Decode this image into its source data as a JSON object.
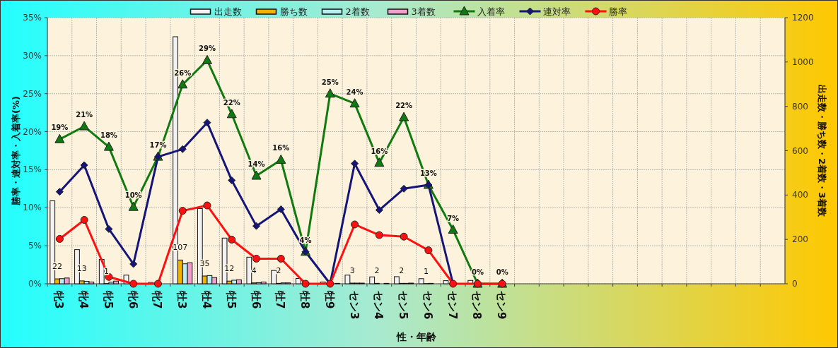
{
  "chart_data": {
    "type": "bar",
    "xlabel": "性・年齢",
    "ylabel": "勝率・連対率・入着率(%)",
    "y2label": "出走数・勝ち数・2着数・3着数",
    "categories": [
      "牝3",
      "牝4",
      "牝5",
      "牝6",
      "牝7",
      "牡3",
      "牡4",
      "牡5",
      "牡6",
      "牡7",
      "牡8",
      "牡9",
      "セン3",
      "セン4",
      "セン5",
      "セン6",
      "セン7",
      "セン8",
      "セン9",
      null,
      null,
      null,
      null,
      null,
      null,
      null,
      null,
      null,
      null,
      null
    ],
    "series": [
      {
        "name": "出走数",
        "axis": "y2",
        "color": "#f2f2f2",
        "values": [
          374,
          154,
          110,
          39,
          6,
          1114,
          339,
          206,
          120,
          60,
          24,
          8,
          39,
          31,
          32,
          23,
          14,
          15,
          0,
          null,
          null,
          null,
          null,
          null,
          null,
          null,
          null,
          null,
          null,
          null
        ]
      },
      {
        "name": "勝ち数",
        "axis": "y2",
        "color": "#f0b400",
        "values": [
          22,
          13,
          1,
          0,
          0,
          107,
          35,
          12,
          4,
          2,
          0,
          0,
          3,
          2,
          2,
          1,
          0,
          0,
          0,
          null,
          null,
          null,
          null,
          null,
          null,
          null,
          null,
          null,
          null,
          null
        ],
        "value_labels": [
          "22",
          "13",
          "1",
          null,
          null,
          "107",
          "35",
          "12",
          "4",
          "2",
          null,
          null,
          "3",
          "2",
          "2",
          "1",
          null,
          null,
          null,
          null,
          null,
          null,
          null,
          null,
          null,
          null,
          null,
          null,
          null,
          null
        ]
      },
      {
        "name": "2着数",
        "axis": "y2",
        "color": "#b8eef2",
        "values": [
          23,
          11,
          7,
          1,
          null,
          90,
          37,
          16,
          5,
          4,
          1,
          0,
          3,
          null,
          2,
          2,
          0,
          0,
          0,
          null,
          null,
          null,
          null,
          null,
          null,
          null,
          null,
          null,
          null,
          null
        ]
      },
      {
        "name": "3着数",
        "axis": "y2",
        "color": "#f0a0cc",
        "values": [
          26,
          8,
          12,
          null,
          0,
          95,
          28,
          18,
          8,
          4,
          0,
          2,
          3,
          2,
          3,
          0,
          null,
          0,
          0,
          null,
          null,
          null,
          null,
          null,
          null,
          null,
          null,
          null,
          null,
          null
        ]
      },
      {
        "name": "入着率",
        "type": "line",
        "color": "#107a10",
        "marker": "triangle",
        "values": [
          19.0,
          20.7,
          18.0,
          10.1,
          16.7,
          26.2,
          29.4,
          22.3,
          14.2,
          16.3,
          4.2,
          25.0,
          23.7,
          15.9,
          21.9,
          13.0,
          7.1,
          0,
          0,
          null,
          null,
          null,
          null,
          null,
          null,
          null,
          null,
          null,
          null,
          null
        ],
        "value_labels": [
          "19%",
          "21%",
          "18%",
          "10%",
          "17%",
          "26%",
          "29%",
          "22%",
          "14%",
          "16%",
          "4%",
          "25%",
          "24%",
          "16%",
          "22%",
          "13%",
          "7%",
          "0%",
          "0%",
          null,
          null,
          null,
          null,
          null,
          null,
          null,
          null,
          null,
          null,
          null
        ]
      },
      {
        "name": "連対率",
        "type": "line",
        "color": "#14147a",
        "marker": "diamond",
        "values": [
          12.1,
          15.6,
          7.2,
          2.6,
          16.7,
          17.7,
          21.2,
          13.6,
          7.6,
          9.8,
          4.2,
          0,
          15.8,
          9.7,
          12.5,
          13.0,
          0,
          null,
          null,
          null,
          null,
          null,
          null,
          null,
          null,
          null,
          null,
          null,
          null,
          null
        ]
      },
      {
        "name": "勝率",
        "type": "line",
        "color": "#ff1010",
        "marker": "circle",
        "values": [
          5.9,
          8.4,
          0.9,
          0,
          0,
          9.6,
          10.3,
          5.8,
          3.3,
          3.3,
          0,
          0,
          7.8,
          6.4,
          6.2,
          4.4,
          0,
          0,
          0,
          null,
          null,
          null,
          null,
          null,
          null,
          null,
          null,
          null,
          null,
          null
        ]
      }
    ],
    "ylim": [
      0,
      35
    ],
    "yticks": [
      {
        "value": 0,
        "label": "0%"
      },
      {
        "value": 5,
        "label": "5%"
      },
      {
        "value": 10,
        "label": "10%"
      },
      {
        "value": 15,
        "label": "15%"
      },
      {
        "value": 20,
        "label": "20%"
      },
      {
        "value": 25,
        "label": "25%"
      },
      {
        "value": 30,
        "label": "30%"
      },
      {
        "value": 35,
        "label": "35%"
      }
    ],
    "y2lim": [
      0,
      1200
    ],
    "y2ticks": [
      0,
      200,
      400,
      600,
      800,
      1000,
      1200
    ],
    "grid": true,
    "legend": "top"
  }
}
